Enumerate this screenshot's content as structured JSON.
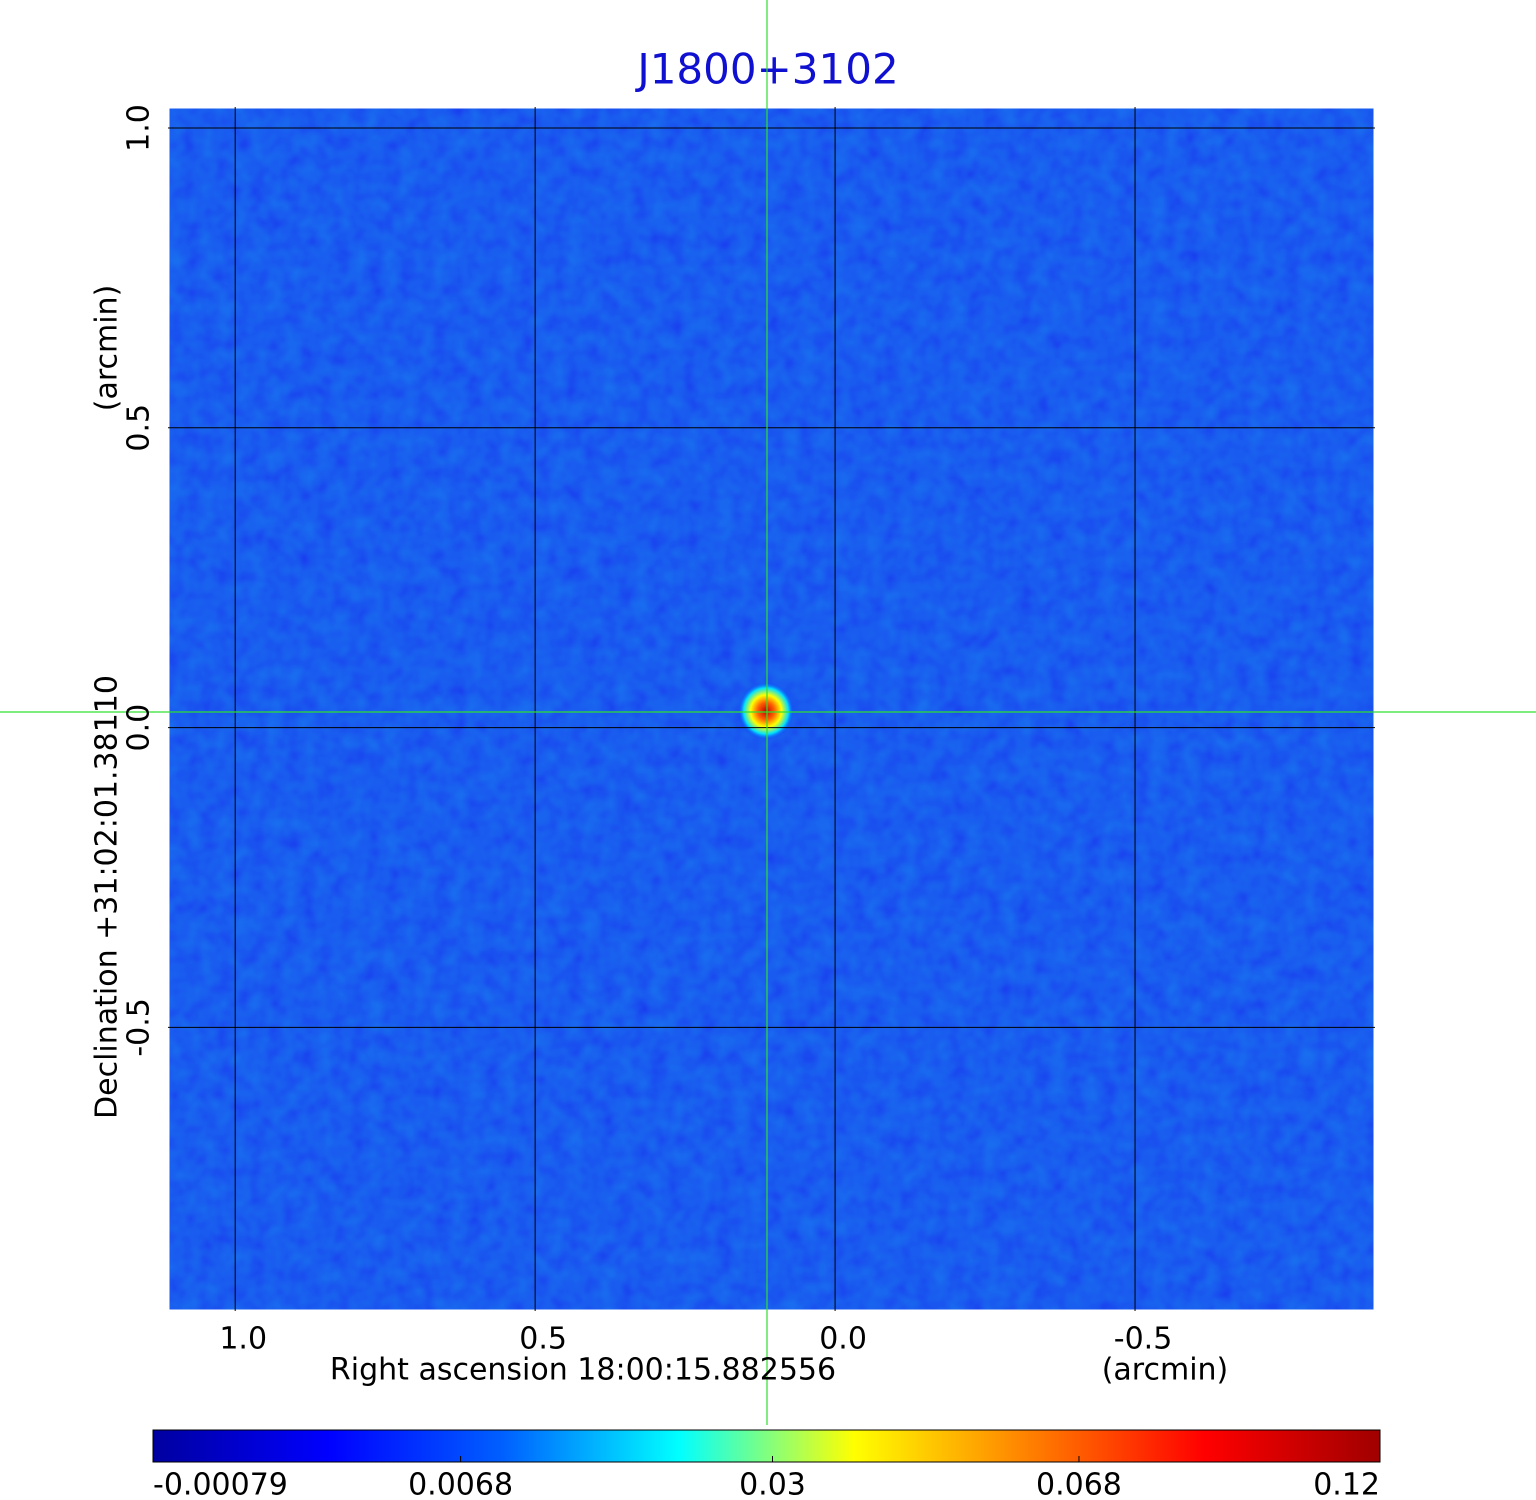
{
  "chart_data": {
    "type": "image",
    "title": "J1800+3102",
    "xlabel": "Right ascension  18:00:15.882556",
    "xunit": "(arcmin)",
    "ylabel": "Declination  +31:02:01.38110",
    "yunit": "(arcmin)",
    "xlim": [
      1.112,
      -0.9
    ],
    "xticks": [
      {
        "value": 1.0,
        "label": "1.0"
      },
      0.5,
      {
        "value": 0.0,
        "label": "0.0"
      },
      -0.5
    ],
    "ylim": [
      -0.973,
      1.035
    ],
    "yticks": [
      {
        "value": 1.0,
        "label": "1.0"
      },
      0.5,
      {
        "value": 0.0,
        "label": "0.0"
      },
      -0.5
    ],
    "grid": true,
    "colorbar": {
      "lim": [
        -0.00079,
        0.12
      ],
      "scale": "sqrt",
      "ticks": [
        -0.00079,
        0.0068,
        0.03,
        0.068,
        0.12
      ],
      "colormap": [
        "#0000a0",
        "#0000ff",
        "#0060ff",
        "#00ffff",
        "#ffff00",
        "#ff8000",
        "#ff0000",
        "#a00000"
      ]
    }
  }
}
